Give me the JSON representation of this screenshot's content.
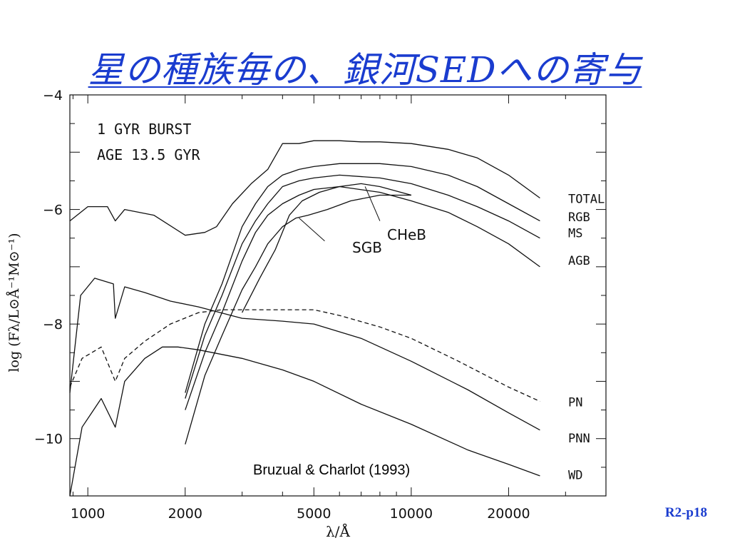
{
  "slide": {
    "title": "星の種族毎の、銀河SEDへの寄与",
    "page": "R2-p18"
  },
  "colors": {
    "title": "#1a3ccf",
    "curves": "#111111"
  },
  "chart_data": {
    "type": "line",
    "xscale": "log",
    "xlim": [
      880,
      40000
    ],
    "ylim": [
      -11,
      -4
    ],
    "xticks": [
      1000,
      2000,
      5000,
      10000,
      20000
    ],
    "xtick_labels": [
      "1000",
      "2000",
      "5000",
      "10000",
      "20000"
    ],
    "yticks": [
      -4,
      -6,
      -8,
      -10
    ],
    "ytick_labels": [
      "−4",
      "−6",
      "−8",
      "−10"
    ],
    "xlabel": "λ/Å",
    "ylabel": "log (Fλ/L⊙Å⁻¹M⊙⁻¹)",
    "annotations": [
      "1 GYR BURST",
      "AGE 13.5 GYR"
    ],
    "credit": "Bruzual & Charlot (1993)",
    "grid": false,
    "series": [
      {
        "name": "TOTAL",
        "x": [
          880,
          1000,
          1150,
          1216,
          1300,
          1600,
          2000,
          2300,
          2500,
          2800,
          3200,
          3600,
          4000,
          4500,
          5000,
          6000,
          7000,
          8000,
          10000,
          13000,
          16000,
          20000,
          25000
        ],
        "y": [
          -6.2,
          -5.95,
          -5.95,
          -6.2,
          -6.0,
          -6.1,
          -6.45,
          -6.4,
          -6.3,
          -5.9,
          -5.55,
          -5.3,
          -4.85,
          -4.85,
          -4.8,
          -4.8,
          -4.82,
          -4.82,
          -4.85,
          -4.95,
          -5.1,
          -5.4,
          -5.8
        ]
      },
      {
        "name": "RGB",
        "x": [
          2000,
          2300,
          2600,
          3000,
          3300,
          3600,
          4000,
          4500,
          5000,
          6000,
          8000,
          10000,
          13000,
          16000,
          20000,
          25000
        ],
        "y": [
          -9.2,
          -8.0,
          -7.3,
          -6.3,
          -5.9,
          -5.6,
          -5.4,
          -5.3,
          -5.25,
          -5.2,
          -5.2,
          -5.25,
          -5.4,
          -5.6,
          -5.9,
          -6.2
        ]
      },
      {
        "name": "MS",
        "x": [
          2000,
          2300,
          2600,
          3000,
          3300,
          3600,
          4000,
          4500,
          5000,
          6000,
          8000,
          10000,
          13000,
          16000,
          20000,
          25000
        ],
        "y": [
          -9.3,
          -8.2,
          -7.5,
          -6.6,
          -6.2,
          -5.9,
          -5.6,
          -5.5,
          -5.45,
          -5.4,
          -5.45,
          -5.55,
          -5.75,
          -5.95,
          -6.2,
          -6.5
        ]
      },
      {
        "name": "AGB",
        "x": [
          2000,
          2300,
          2600,
          3000,
          3300,
          3600,
          4000,
          4500,
          5000,
          6000,
          8000,
          10000,
          13000,
          16000,
          20000,
          25000
        ],
        "y": [
          -9.5,
          -8.5,
          -7.8,
          -6.9,
          -6.4,
          -6.1,
          -5.9,
          -5.75,
          -5.65,
          -5.6,
          -5.7,
          -5.85,
          -6.05,
          -6.3,
          -6.6,
          -7.0
        ]
      },
      {
        "name": "SGB",
        "x": [
          2000,
          2300,
          2600,
          3000,
          3300,
          3600,
          4000,
          4400,
          4800,
          5500,
          6500,
          8000,
          10000
        ],
        "y": [
          -10.1,
          -8.9,
          -8.2,
          -7.4,
          -7.0,
          -6.6,
          -6.3,
          -6.15,
          -6.1,
          -6.0,
          -5.85,
          -5.75,
          -5.75
        ]
      },
      {
        "name": "CHeB",
        "x": [
          3000,
          3400,
          3800,
          4200,
          4600,
          5200,
          6000,
          7000,
          8000,
          10000
        ],
        "y": [
          -7.8,
          -7.2,
          -6.7,
          -6.1,
          -5.85,
          -5.7,
          -5.6,
          -5.55,
          -5.6,
          -5.75
        ]
      },
      {
        "name": "PN",
        "x": [
          880,
          960,
          1100,
          1216,
          1300,
          1500,
          1800,
          2200,
          2600,
          3000,
          4000,
          5000,
          6000,
          8000,
          10000,
          14000,
          20000,
          25000
        ],
        "y": [
          -9.1,
          -8.6,
          -8.4,
          -9.0,
          -8.6,
          -8.3,
          -8.0,
          -7.8,
          -7.75,
          -7.75,
          -7.75,
          -7.75,
          -7.85,
          -8.05,
          -8.25,
          -8.65,
          -9.1,
          -9.35
        ]
      },
      {
        "name": "PNN",
        "x": [
          880,
          950,
          1050,
          1200,
          1216,
          1300,
          1500,
          1800,
          2200,
          3000,
          4000,
          5000,
          7000,
          10000,
          15000,
          20000,
          25000
        ],
        "y": [
          -9.2,
          -7.5,
          -7.2,
          -7.3,
          -7.9,
          -7.35,
          -7.45,
          -7.6,
          -7.7,
          -7.9,
          -7.95,
          -8.0,
          -8.25,
          -8.65,
          -9.15,
          -9.55,
          -9.85
        ]
      },
      {
        "name": "WD",
        "x": [
          880,
          960,
          1100,
          1216,
          1300,
          1500,
          1700,
          1900,
          2200,
          3000,
          4000,
          5000,
          7000,
          10000,
          15000,
          20000,
          25000
        ],
        "y": [
          -11,
          -9.8,
          -9.3,
          -9.8,
          -9.0,
          -8.6,
          -8.4,
          -8.4,
          -8.45,
          -8.6,
          -8.8,
          -9.0,
          -9.4,
          -9.75,
          -10.2,
          -10.45,
          -10.65
        ]
      }
    ],
    "labels": {
      "TOTAL": "TOTAL",
      "RGB": "RGB",
      "MS": "MS",
      "AGB": "AGB",
      "SGB": "SGB",
      "CHeB": "CHeB",
      "PN": "PN",
      "PNN": "PNN",
      "WD": "WD"
    }
  }
}
